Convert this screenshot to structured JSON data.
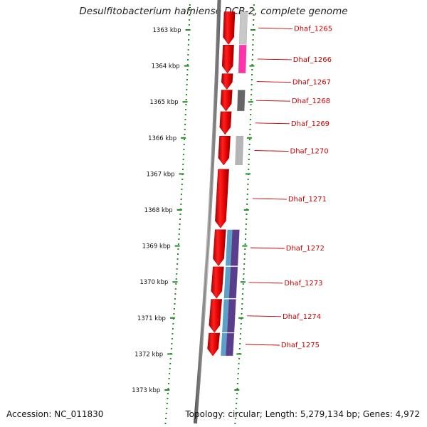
{
  "title": "Desulfitobacterium hafniense DCB-2, complete genome",
  "footer": {
    "accession": "Accession: NC_011830",
    "summary": "Topology: circular; Length: 5,279,134 bp; Genes: 4,972"
  },
  "colors": {
    "backbone": "#777777",
    "ruler_dots": "#228b22",
    "gene_forward": "#ee0000",
    "gene_label": "#cc0000",
    "tick_text": "#111111"
  },
  "ticks": [
    "1363 kbp",
    "1364 kbp",
    "1365 kbp",
    "1366 kbp",
    "1367 kbp",
    "1368 kbp",
    "1369 kbp",
    "1370 kbp",
    "1371 kbp",
    "1372 kbp",
    "1373 kbp"
  ],
  "genes": [
    {
      "label": "Dhaf_1265",
      "start": 1362.5,
      "end": 1363.4,
      "cog": "#c8c8c8"
    },
    {
      "label": "Dhaf_1266",
      "start": 1363.42,
      "end": 1364.2,
      "cog": "#ff33aa"
    },
    {
      "label": "Dhaf_1267",
      "start": 1364.22,
      "end": 1364.65,
      "cog": ""
    },
    {
      "label": "Dhaf_1268",
      "start": 1364.67,
      "end": 1365.25,
      "cog": "#666666"
    },
    {
      "label": "Dhaf_1269",
      "start": 1365.27,
      "end": 1365.9,
      "cog": ""
    },
    {
      "label": "Dhaf_1270",
      "start": 1365.95,
      "end": 1366.75,
      "cog": "#b5b5b5"
    },
    {
      "label": "Dhaf_1271",
      "start": 1366.87,
      "end": 1368.5,
      "cog": ""
    },
    {
      "label": "Dhaf_1272",
      "start": 1368.55,
      "end": 1369.55,
      "cog": "#5a3d8c",
      "cog2": "#5aa0c8"
    },
    {
      "label": "Dhaf_1273",
      "start": 1369.58,
      "end": 1370.45,
      "cog": "#5a3d8c",
      "cog2": "#5aa0c8"
    },
    {
      "label": "Dhaf_1274",
      "start": 1370.48,
      "end": 1371.4,
      "cog": "#5a3d8c",
      "cog2": "#5aa0c8"
    },
    {
      "label": "Dhaf_1275",
      "start": 1371.42,
      "end": 1372.05,
      "cog": "#5a3d8c",
      "cog2": "#5aa0c8"
    }
  ]
}
